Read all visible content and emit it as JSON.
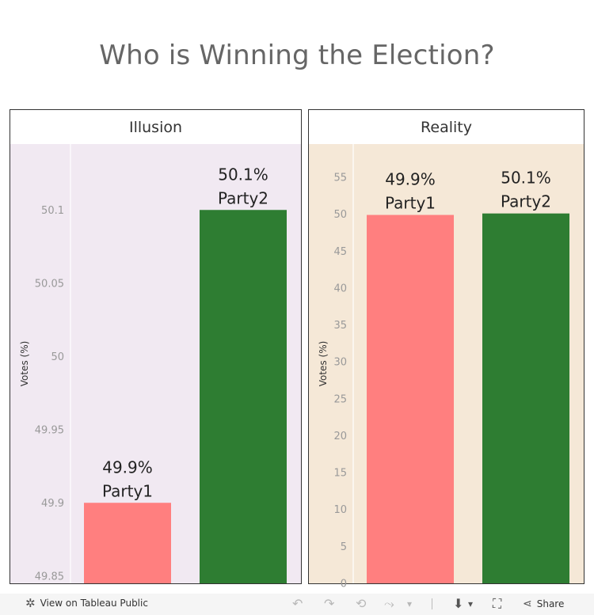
{
  "title": "Who is Winning the Election?",
  "chart_data": [
    {
      "type": "bar",
      "title": "Illusion",
      "ylabel": "Votes (%)",
      "ylim": [
        49.845,
        50.145
      ],
      "yticks": [
        49.85,
        49.9,
        49.95,
        50,
        50.05,
        50.1
      ],
      "ytick_labels": [
        "49.85",
        "49.9",
        "49.95",
        "50",
        "50.05",
        "50.1"
      ],
      "background": "#f1e9f2",
      "categories": [
        "Party1",
        "Party2"
      ],
      "values": [
        49.9,
        50.1
      ],
      "value_labels": [
        "49.9%",
        "50.1%"
      ],
      "colors": [
        "#ff7f7f",
        "#2e7d32"
      ]
    },
    {
      "type": "bar",
      "title": "Reality",
      "ylabel": "Votes (%)",
      "ylim": [
        0,
        59.5
      ],
      "yticks": [
        0,
        5,
        10,
        15,
        20,
        25,
        30,
        35,
        40,
        45,
        50,
        55
      ],
      "ytick_labels": [
        "0",
        "5",
        "10",
        "15",
        "20",
        "25",
        "30",
        "35",
        "40",
        "45",
        "50",
        "55"
      ],
      "background": "#f5e8d7",
      "categories": [
        "Party1",
        "Party2"
      ],
      "values": [
        49.9,
        50.1
      ],
      "value_labels": [
        "49.9%",
        "50.1%"
      ],
      "colors": [
        "#ff7f7f",
        "#2e7d32"
      ]
    }
  ],
  "footer": {
    "view_label": "View on Tableau Public",
    "share_label": "Share",
    "tableau_icon": "✲",
    "undo_icon": "↶",
    "redo_icon": "↷",
    "revert_icon": "⟲",
    "refresh_icon": "⤳",
    "dropdown_icon": "▾",
    "download_icon": "⬇",
    "fullscreen_icon": "⛶",
    "share_icon": "⋖"
  }
}
